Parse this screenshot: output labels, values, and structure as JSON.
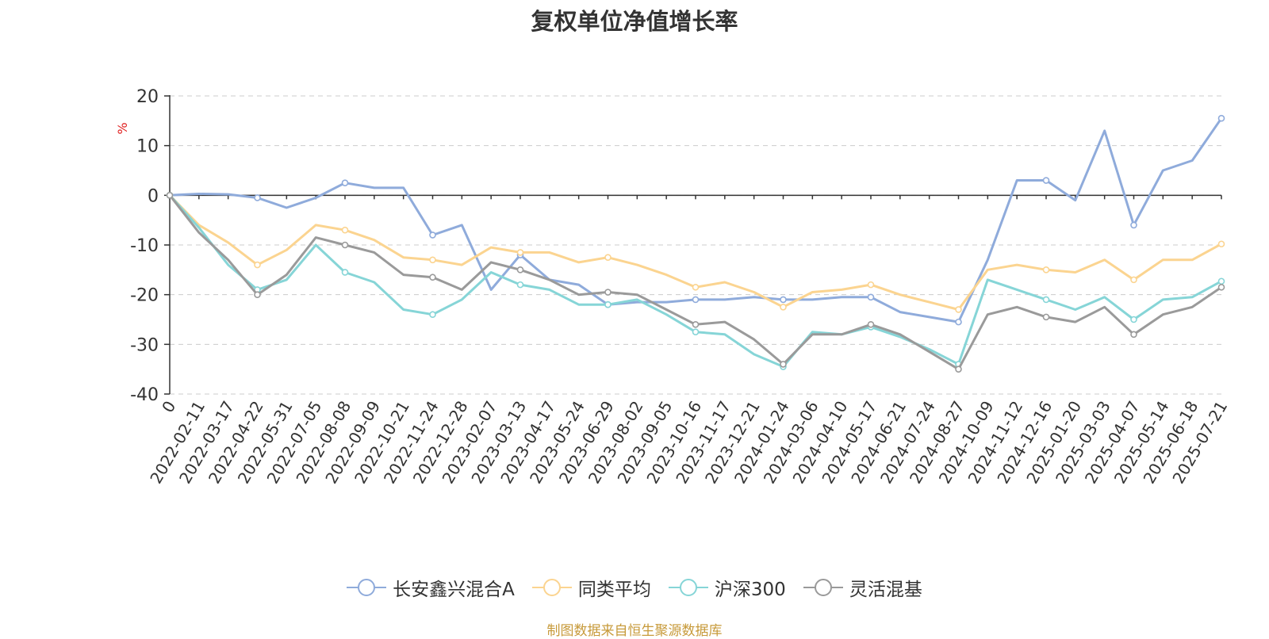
{
  "chart_data": {
    "type": "line",
    "title": "复权单位净值增长率",
    "ylabel": "%",
    "ylim": [
      -40,
      20
    ],
    "yticks": [
      20,
      10,
      0,
      -10,
      -20,
      -30,
      -40
    ],
    "xlabels": [
      "0",
      "2022-02-11",
      "2022-03-17",
      "2022-04-22",
      "2022-05-31",
      "2022-07-05",
      "2022-08-08",
      "2022-09-09",
      "2022-10-21",
      "2022-11-24",
      "2022-12-28",
      "2023-02-07",
      "2023-03-13",
      "2023-04-17",
      "2023-05-24",
      "2023-06-29",
      "2023-08-02",
      "2023-09-05",
      "2023-10-16",
      "2023-11-17",
      "2023-12-21",
      "2024-01-24",
      "2024-03-06",
      "2024-04-10",
      "2024-05-17",
      "2024-06-21",
      "2024-07-24",
      "2024-08-27",
      "2024-10-09",
      "2024-11-12",
      "2024-12-16",
      "2025-01-20",
      "2025-03-03",
      "2025-04-07",
      "2025-05-14",
      "2025-06-18",
      "2025-07-21"
    ],
    "grid": true,
    "legend_position": "bottom",
    "series": [
      {
        "name": "长安鑫兴混合A",
        "color": "#8fabdb",
        "values": [
          0,
          0.3,
          0.2,
          -0.5,
          -2.5,
          -0.5,
          2.5,
          1.5,
          1.5,
          -8,
          -6,
          -19,
          -12,
          -17,
          -18,
          -22,
          -21.5,
          -21.5,
          -21,
          -21,
          -20.5,
          -21,
          -21,
          -20.5,
          -20.5,
          -23.5,
          -24.5,
          -25.5,
          -13,
          3,
          3,
          -1,
          13,
          -6,
          5,
          7,
          15.5
        ]
      },
      {
        "name": "同类平均",
        "color": "#fbd490",
        "values": [
          0,
          -6,
          -9.5,
          -14,
          -11,
          -6,
          -7,
          -9,
          -12.5,
          -13,
          -14,
          -10.5,
          -11.5,
          -11.5,
          -13.5,
          -12.5,
          -14,
          -16,
          -18.5,
          -17.5,
          -19.5,
          -22.5,
          -19.5,
          -19,
          -18,
          -20,
          -21.5,
          -23,
          -15,
          -14,
          -15,
          -15.5,
          -13,
          -17,
          -13,
          -13,
          -9.8
        ]
      },
      {
        "name": "沪深300",
        "color": "#86d5d7",
        "values": [
          0,
          -6.5,
          -14,
          -19,
          -17,
          -10,
          -15.5,
          -17.5,
          -23,
          -24,
          -21,
          -15.5,
          -18,
          -19,
          -22,
          -22,
          -21,
          -24,
          -27.5,
          -28,
          -32,
          -34.5,
          -27.5,
          -28,
          -26.5,
          -28.5,
          -31,
          -34,
          -17,
          -19,
          -21,
          -23,
          -20.5,
          -25,
          -21,
          -20.5,
          -17.3
        ]
      },
      {
        "name": "灵活混基",
        "color": "#9a9a9a",
        "values": [
          0,
          -7.5,
          -13,
          -20,
          -16,
          -8.5,
          -10,
          -11.5,
          -16,
          -16.5,
          -19,
          -13.5,
          -15,
          -17,
          -20,
          -19.5,
          -20,
          -23,
          -26,
          -25.5,
          -29,
          -34,
          -28,
          -28,
          -26,
          -28,
          -31.5,
          -35,
          -24,
          -22.5,
          -24.5,
          -25.5,
          -22.5,
          -28,
          -24,
          -22.5,
          -18.5
        ]
      }
    ]
  }
}
